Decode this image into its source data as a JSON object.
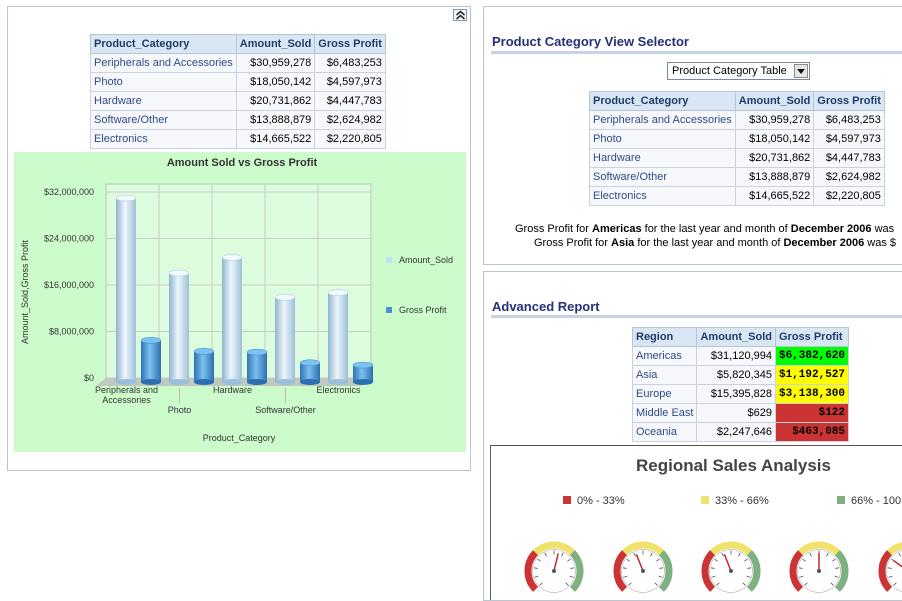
{
  "left_panel": {
    "table": {
      "headers": [
        "Product_Category",
        "Amount_Sold",
        "Gross Profit"
      ],
      "rows": [
        [
          "Peripherals and Accessories",
          "$30,959,278",
          "$6,483,253"
        ],
        [
          "Photo",
          "$18,050,142",
          "$4,597,973"
        ],
        [
          "Hardware",
          "$20,731,862",
          "$4,447,783"
        ],
        [
          "Software/Other",
          "$13,888,879",
          "$2,624,982"
        ],
        [
          "Electronics",
          "$14,665,522",
          "$2,220,805"
        ]
      ]
    }
  },
  "chart_data": {
    "type": "bar",
    "title": "Amount Sold vs Gross Profit",
    "xlabel": "Product_Category",
    "ylabel": "Amount_Sold,Gross Profit",
    "categories": [
      "Peripherals and Accessories",
      "Photo",
      "Hardware",
      "Software/Other",
      "Electronics"
    ],
    "series": [
      {
        "name": "Amount_Sold",
        "values": [
          30959278,
          18050142,
          20731862,
          13888879,
          14665522
        ]
      },
      {
        "name": "Gross Profit",
        "values": [
          6483253,
          4597973,
          4447783,
          2624982,
          2220805
        ]
      }
    ],
    "ylim": [
      0,
      32000000
    ],
    "yticks": [
      "$0",
      "$8,000,000",
      "$16,000,000",
      "$24,000,000",
      "$32,000,000"
    ],
    "grid": true,
    "legend": "right",
    "colors": {
      "Amount_Sold": "#bfe0f5",
      "Gross Profit": "#4a93d3",
      "background": "#ccfccc"
    }
  },
  "selector_panel": {
    "title": "Product Category View Selector",
    "select_value": "Product Category Table",
    "table": {
      "headers": [
        "Product_Category",
        "Amount_Sold",
        "Gross Profit"
      ],
      "rows": [
        [
          "Peripherals and Accessories",
          "$30,959,278",
          "$6,483,253"
        ],
        [
          "Photo",
          "$18,050,142",
          "$4,597,973"
        ],
        [
          "Hardware",
          "$20,731,862",
          "$4,447,783"
        ],
        [
          "Software/Other",
          "$13,888,879",
          "$2,624,982"
        ],
        [
          "Electronics",
          "$14,665,522",
          "$2,220,805"
        ]
      ]
    },
    "gp_lines": [
      {
        "p1": "Gross Profit for ",
        "region": "Americas",
        "p2": " for the last year and month of ",
        "period": "December 2006",
        "p3": " was"
      },
      {
        "p1": "Gross Profit for ",
        "region": "Asia",
        "p2": " for the last year and month of ",
        "period": "December 2006",
        "p3": " was $"
      }
    ]
  },
  "advanced_panel": {
    "title": "Advanced Report",
    "table": {
      "headers": [
        "Region",
        "Amount_Sold",
        "Gross Profit"
      ],
      "rows": [
        {
          "region": "Americas",
          "amount": "$31,120,994",
          "profit": "$6,382,620",
          "status": "green"
        },
        {
          "region": "Asia",
          "amount": "$5,820,345",
          "profit": "$1,192,527",
          "status": "yellow"
        },
        {
          "region": "Europe",
          "amount": "$15,395,828",
          "profit": "$3,138,300",
          "status": "yellow"
        },
        {
          "region": "Middle East",
          "amount": "$629",
          "profit": "$122",
          "status": "red"
        },
        {
          "region": "Oceania",
          "amount": "$2,247,646",
          "profit": "$463,085",
          "status": "red"
        }
      ]
    },
    "regional": {
      "title": "Regional Sales Analysis",
      "legend": [
        {
          "label": "0% - 33%",
          "color": "#cc3333"
        },
        {
          "label": "33% - 66%",
          "color": "#f0e26a"
        },
        {
          "label": "66% - 100",
          "color": "#7fb07f"
        }
      ],
      "gauge_levels": [
        0.55,
        0.42,
        0.42,
        0.5,
        0.3
      ]
    }
  }
}
